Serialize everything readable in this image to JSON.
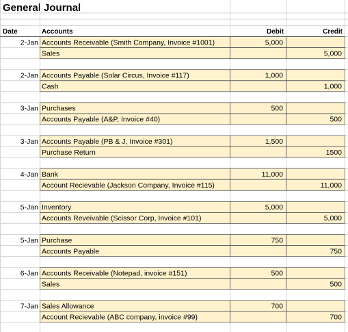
{
  "title": "General Journal",
  "header": {
    "date": "Date",
    "accounts": "Accounts",
    "debit": "Debit",
    "credit": "Credit"
  },
  "entries": [
    {
      "date": "2-Jan",
      "lines": [
        {
          "account": "Accounts Receivable (Smith Company, Invoice #1001)",
          "debit": "5,000"
        },
        {
          "account": "Sales",
          "credit": "5,000"
        }
      ]
    },
    {
      "date": "2-Jan",
      "lines": [
        {
          "account": "Accounts Payable (Solar Circus, Invoice #117)",
          "debit": "1,000"
        },
        {
          "account": "Cash",
          "credit": "1,000"
        }
      ]
    },
    {
      "date": "3-Jan",
      "lines": [
        {
          "account": "Purchases",
          "debit": "500"
        },
        {
          "account": "Accounts Payable (A&P, Invoice #40)",
          "credit": "500"
        }
      ]
    },
    {
      "date": "3-Jan",
      "lines": [
        {
          "account": "Accounts Payable (PB & J, Invoice #301)",
          "debit": "1,500"
        },
        {
          "account": "Purchase Return",
          "credit": "1500"
        }
      ]
    },
    {
      "date": "4-Jan",
      "lines": [
        {
          "account": "Bank",
          "debit": "11,000"
        },
        {
          "account": "Account Recievable (Jackson Company, Invoice #115)",
          "credit": "11,000"
        }
      ]
    },
    {
      "date": "5-Jan",
      "lines": [
        {
          "account": "Inventory",
          "debit": "5,000"
        },
        {
          "account": "Accounts Reveivable (Scissor Corp, Invoice #101)",
          "credit": "5,000"
        }
      ]
    },
    {
      "date": "5-Jan",
      "lines": [
        {
          "account": "Purchase",
          "debit": "750"
        },
        {
          "account": "Accounts Payable",
          "credit": "750"
        }
      ]
    },
    {
      "date": "6-Jan",
      "lines": [
        {
          "account": "Accounts Receivable (Notepad, invoice #151)",
          "debit": "500"
        },
        {
          "account": "Sales",
          "credit": "500"
        }
      ]
    },
    {
      "date": "7-Jan",
      "lines": [
        {
          "account": "Sales Allowance",
          "debit": "700"
        },
        {
          "account": "Account Recievable (ABC company, invoice #99)",
          "credit": "700"
        }
      ]
    }
  ]
}
